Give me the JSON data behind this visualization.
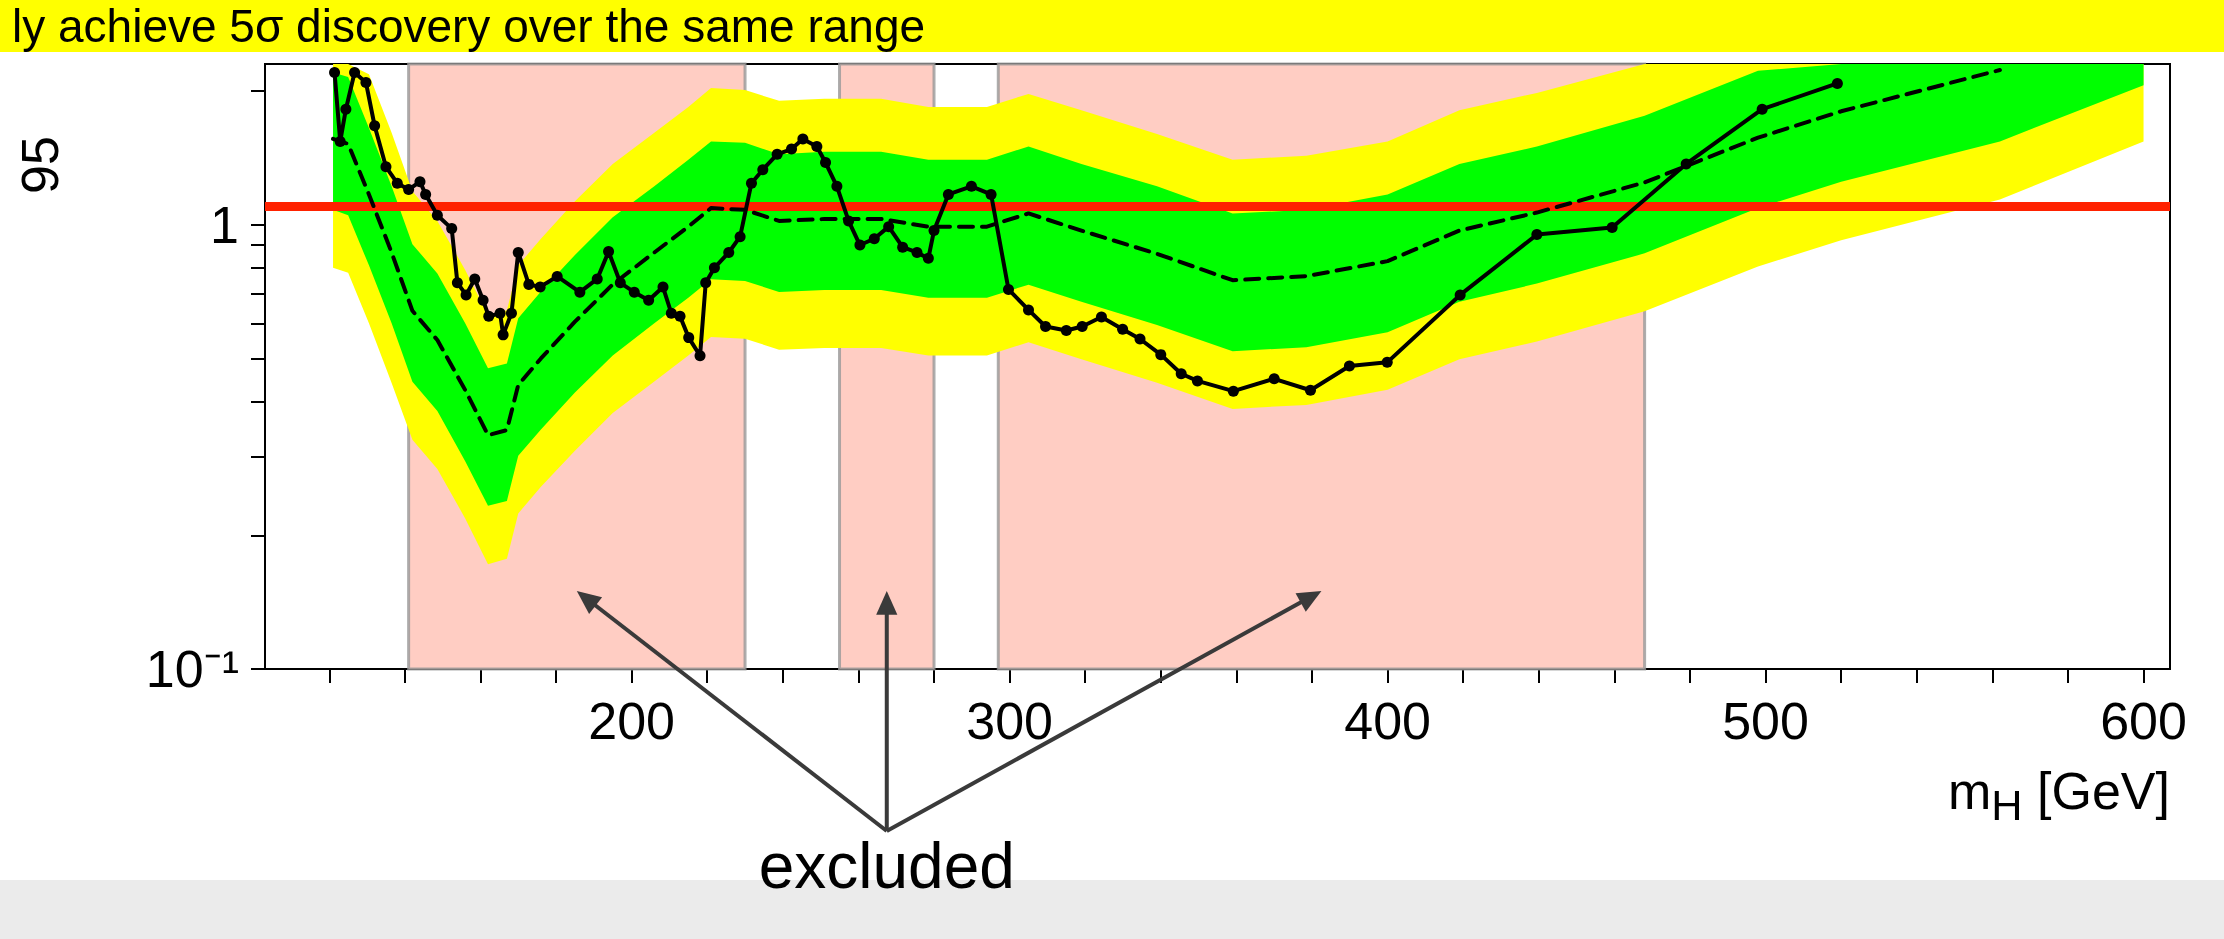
{
  "chart_data": {
    "type": "line",
    "title": "ly achieve 5σ discovery over the same range",
    "xlabel": "m$_{H}$ [GeV]",
    "ylabel": "95",
    "annotations": [
      "excluded"
    ],
    "log": "y",
    "xlim": [
      103,
      607
    ],
    "xticks": [
      {
        "value": 120,
        "label": null
      },
      {
        "value": 140,
        "label": null
      },
      {
        "value": 160,
        "label": null
      },
      {
        "value": 180,
        "label": null
      },
      200,
      {
        "value": 220,
        "label": null
      },
      {
        "value": 240,
        "label": null
      },
      {
        "value": 260,
        "label": null
      },
      {
        "value": 280,
        "label": null
      },
      300,
      {
        "value": 320,
        "label": null
      },
      {
        "value": 340,
        "label": null
      },
      {
        "value": 360,
        "label": null
      },
      {
        "value": 380,
        "label": null
      },
      400,
      {
        "value": 420,
        "label": null
      },
      {
        "value": 440,
        "label": null
      },
      {
        "value": 460,
        "label": null
      },
      {
        "value": 480,
        "label": null
      },
      500,
      {
        "value": 520,
        "label": null
      },
      {
        "value": 540,
        "label": null
      },
      {
        "value": 560,
        "label": null
      },
      {
        "value": 580,
        "label": null
      },
      600
    ],
    "ylim": [
      0.1,
      2.3
    ],
    "yticks": [
      {
        "value": 0.1,
        "label": "10⁻¹"
      },
      {
        "value": 0.2,
        "label": null
      },
      {
        "value": 0.3,
        "label": null
      },
      {
        "value": 0.4,
        "label": null
      },
      {
        "value": 0.5,
        "label": null
      },
      {
        "value": 0.6,
        "label": null
      },
      {
        "value": 0.7,
        "label": null
      },
      {
        "value": 0.8,
        "label": null
      },
      {
        "value": 0.9,
        "label": null
      },
      1,
      {
        "value": 2,
        "label": null
      }
    ],
    "ref_lines": [
      {
        "axis": "y",
        "value": 1.1,
        "color": "#ff2200"
      }
    ],
    "bands": [
      {
        "axis": "x",
        "from": 141,
        "to": 230,
        "color": "#ffc0b4"
      },
      {
        "axis": "x",
        "from": 255,
        "to": 280,
        "color": "#ffc0b4"
      },
      {
        "axis": "x",
        "from": 297,
        "to": 468,
        "color": "#ffc0b4"
      }
    ],
    "series": [
      {
        "color": "#ffff00",
        "values": [
          null,
          null,
          null,
          null,
          null,
          null,
          null,
          null,
          null,
          null,
          null,
          null,
          null,
          null,
          null,
          null,
          null,
          null,
          null,
          null,
          null,
          null,
          null,
          null,
          null,
          null,
          null,
          null,
          null,
          null,
          null,
          null,
          null,
          null,
          null
        ],
        "x": [
          121,
          125,
          130.5,
          136.5,
          142,
          148.6,
          156,
          162,
          167,
          170,
          176,
          185,
          195,
          206,
          215,
          221,
          230,
          239,
          251,
          266,
          278.5,
          294,
          305,
          319,
          339,
          359,
          378.5,
          400,
          419,
          439.5,
          468,
          498,
          520,
          562,
          600
        ],
        "lower": [
          0.8,
          0.78,
          0.6,
          0.44,
          0.328,
          0.282,
          0.218,
          0.172,
          0.177,
          0.224,
          0.257,
          0.31,
          0.377,
          0.444,
          0.508,
          0.559,
          0.554,
          0.523,
          0.528,
          0.528,
          0.508,
          0.508,
          0.544,
          0.498,
          0.441,
          0.385,
          0.393,
          0.425,
          0.498,
          0.546,
          0.639,
          0.805,
          0.923,
          1.14,
          1.54
        ],
        "upper": [
          2.3,
          2.3,
          2.18,
          1.61,
          1.19,
          1.02,
          0.79,
          0.626,
          0.642,
          0.81,
          0.93,
          1.13,
          1.37,
          1.61,
          1.84,
          2.03,
          2.01,
          1.9,
          1.92,
          1.92,
          1.84,
          1.84,
          1.97,
          1.81,
          1.6,
          1.4,
          1.43,
          1.54,
          1.81,
          1.98,
          2.3,
          2.3,
          2.3,
          2.3,
          2.3
        ]
      },
      {
        "color": "#00ff00",
        "values": [
          null,
          null,
          null,
          null,
          null,
          null,
          null,
          null,
          null,
          null,
          null,
          null,
          null,
          null,
          null,
          null,
          null,
          null,
          null,
          null,
          null,
          null,
          null,
          null,
          null,
          null,
          null,
          null,
          null,
          null,
          null,
          null,
          null,
          null,
          null
        ],
        "x": [
          121,
          125,
          130.5,
          136.5,
          142,
          148.6,
          156,
          162,
          167,
          170,
          176,
          185,
          195,
          206,
          215,
          221,
          230,
          239,
          251,
          266,
          278.5,
          294,
          305,
          319,
          339,
          359,
          378.5,
          400,
          419,
          439.5,
          468,
          498,
          520,
          562,
          600
        ],
        "lower": [
          1.08,
          1.05,
          0.81,
          0.6,
          0.443,
          0.381,
          0.293,
          0.233,
          0.239,
          0.302,
          0.346,
          0.419,
          0.508,
          0.6,
          0.685,
          0.754,
          0.747,
          0.706,
          0.713,
          0.713,
          0.685,
          0.685,
          0.733,
          0.671,
          0.595,
          0.519,
          0.53,
          0.573,
          0.671,
          0.737,
          0.862,
          1.09,
          1.25,
          1.54,
          2.06
        ],
        "upper": [
          2.2,
          2.15,
          1.65,
          1.22,
          0.904,
          0.777,
          0.599,
          0.475,
          0.487,
          0.616,
          0.707,
          0.855,
          1.04,
          1.22,
          1.4,
          1.54,
          1.53,
          1.44,
          1.46,
          1.46,
          1.4,
          1.4,
          1.5,
          1.37,
          1.22,
          1.06,
          1.08,
          1.17,
          1.37,
          1.5,
          1.76,
          2.22,
          2.3,
          2.3,
          2.3
        ]
      },
      {
        "color": "#000000",
        "line_style": "dashed",
        "marker": "none",
        "x": [
          121,
          125,
          130.5,
          136.5,
          142,
          148.6,
          156,
          162,
          167,
          170,
          176,
          185,
          195,
          206,
          215,
          221,
          230,
          239,
          251,
          266,
          278.5,
          294,
          305,
          319,
          339,
          359,
          378.5,
          400,
          419,
          439.5,
          468,
          498,
          520,
          562
        ],
        "values": [
          1.56,
          1.52,
          1.17,
          0.866,
          0.64,
          0.55,
          0.424,
          0.336,
          0.345,
          0.436,
          0.5,
          0.605,
          0.734,
          0.866,
          0.99,
          1.09,
          1.08,
          1.02,
          1.03,
          1.03,
          0.99,
          0.99,
          1.06,
          0.97,
          0.86,
          0.75,
          0.766,
          0.828,
          0.97,
          1.065,
          1.245,
          1.57,
          1.8,
          2.23
        ]
      },
      {
        "color": "#000000",
        "line_style": "solid",
        "marker": "circle",
        "x": [
          121.4,
          122.9,
          124.4,
          126.7,
          129.7,
          132,
          135,
          138,
          141,
          144,
          145.5,
          148.6,
          152.4,
          153.9,
          156.2,
          158.5,
          160.7,
          162.2,
          165.2,
          166,
          168.2,
          170,
          172.8,
          175.8,
          180.3,
          186.3,
          190.9,
          193.9,
          197,
          200.7,
          204.5,
          208.3,
          210.5,
          212.8,
          215.1,
          218.1,
          219.6,
          221.9,
          225.7,
          228.7,
          231.7,
          234.7,
          238.5,
          242.3,
          245.3,
          249,
          251.3,
          254.3,
          257.4,
          260.4,
          264.2,
          268,
          271.7,
          275.5,
          278.5,
          280,
          283.8,
          289.9,
          295.1,
          299.7,
          305,
          309.5,
          315,
          319.2,
          324.3,
          329.9,
          334.5,
          340,
          345.4,
          349.7,
          359.2,
          370,
          379.6,
          389.9,
          399.9,
          419.2,
          439.5,
          459.4,
          479,
          499.1,
          519
        ],
        "values": [
          2.2,
          1.54,
          1.82,
          2.2,
          2.09,
          1.67,
          1.35,
          1.24,
          1.2,
          1.25,
          1.17,
          1.05,
          0.98,
          0.74,
          0.695,
          0.755,
          0.676,
          0.622,
          0.632,
          0.565,
          0.632,
          0.866,
          0.734,
          0.724,
          0.765,
          0.705,
          0.755,
          0.87,
          0.74,
          0.705,
          0.676,
          0.724,
          0.632,
          0.622,
          0.557,
          0.507,
          0.74,
          0.8,
          0.866,
          0.94,
          1.24,
          1.33,
          1.44,
          1.48,
          1.56,
          1.5,
          1.38,
          1.22,
          1.02,
          0.9,
          0.93,
          0.99,
          0.89,
          0.866,
          0.84,
          0.97,
          1.17,
          1.22,
          1.17,
          0.715,
          0.643,
          0.59,
          0.578,
          0.59,
          0.62,
          0.582,
          0.553,
          0.51,
          0.462,
          0.445,
          0.422,
          0.45,
          0.424,
          0.481,
          0.49,
          0.695,
          0.95,
          0.986,
          1.37,
          1.82,
          2.08
        ]
      }
    ]
  }
}
